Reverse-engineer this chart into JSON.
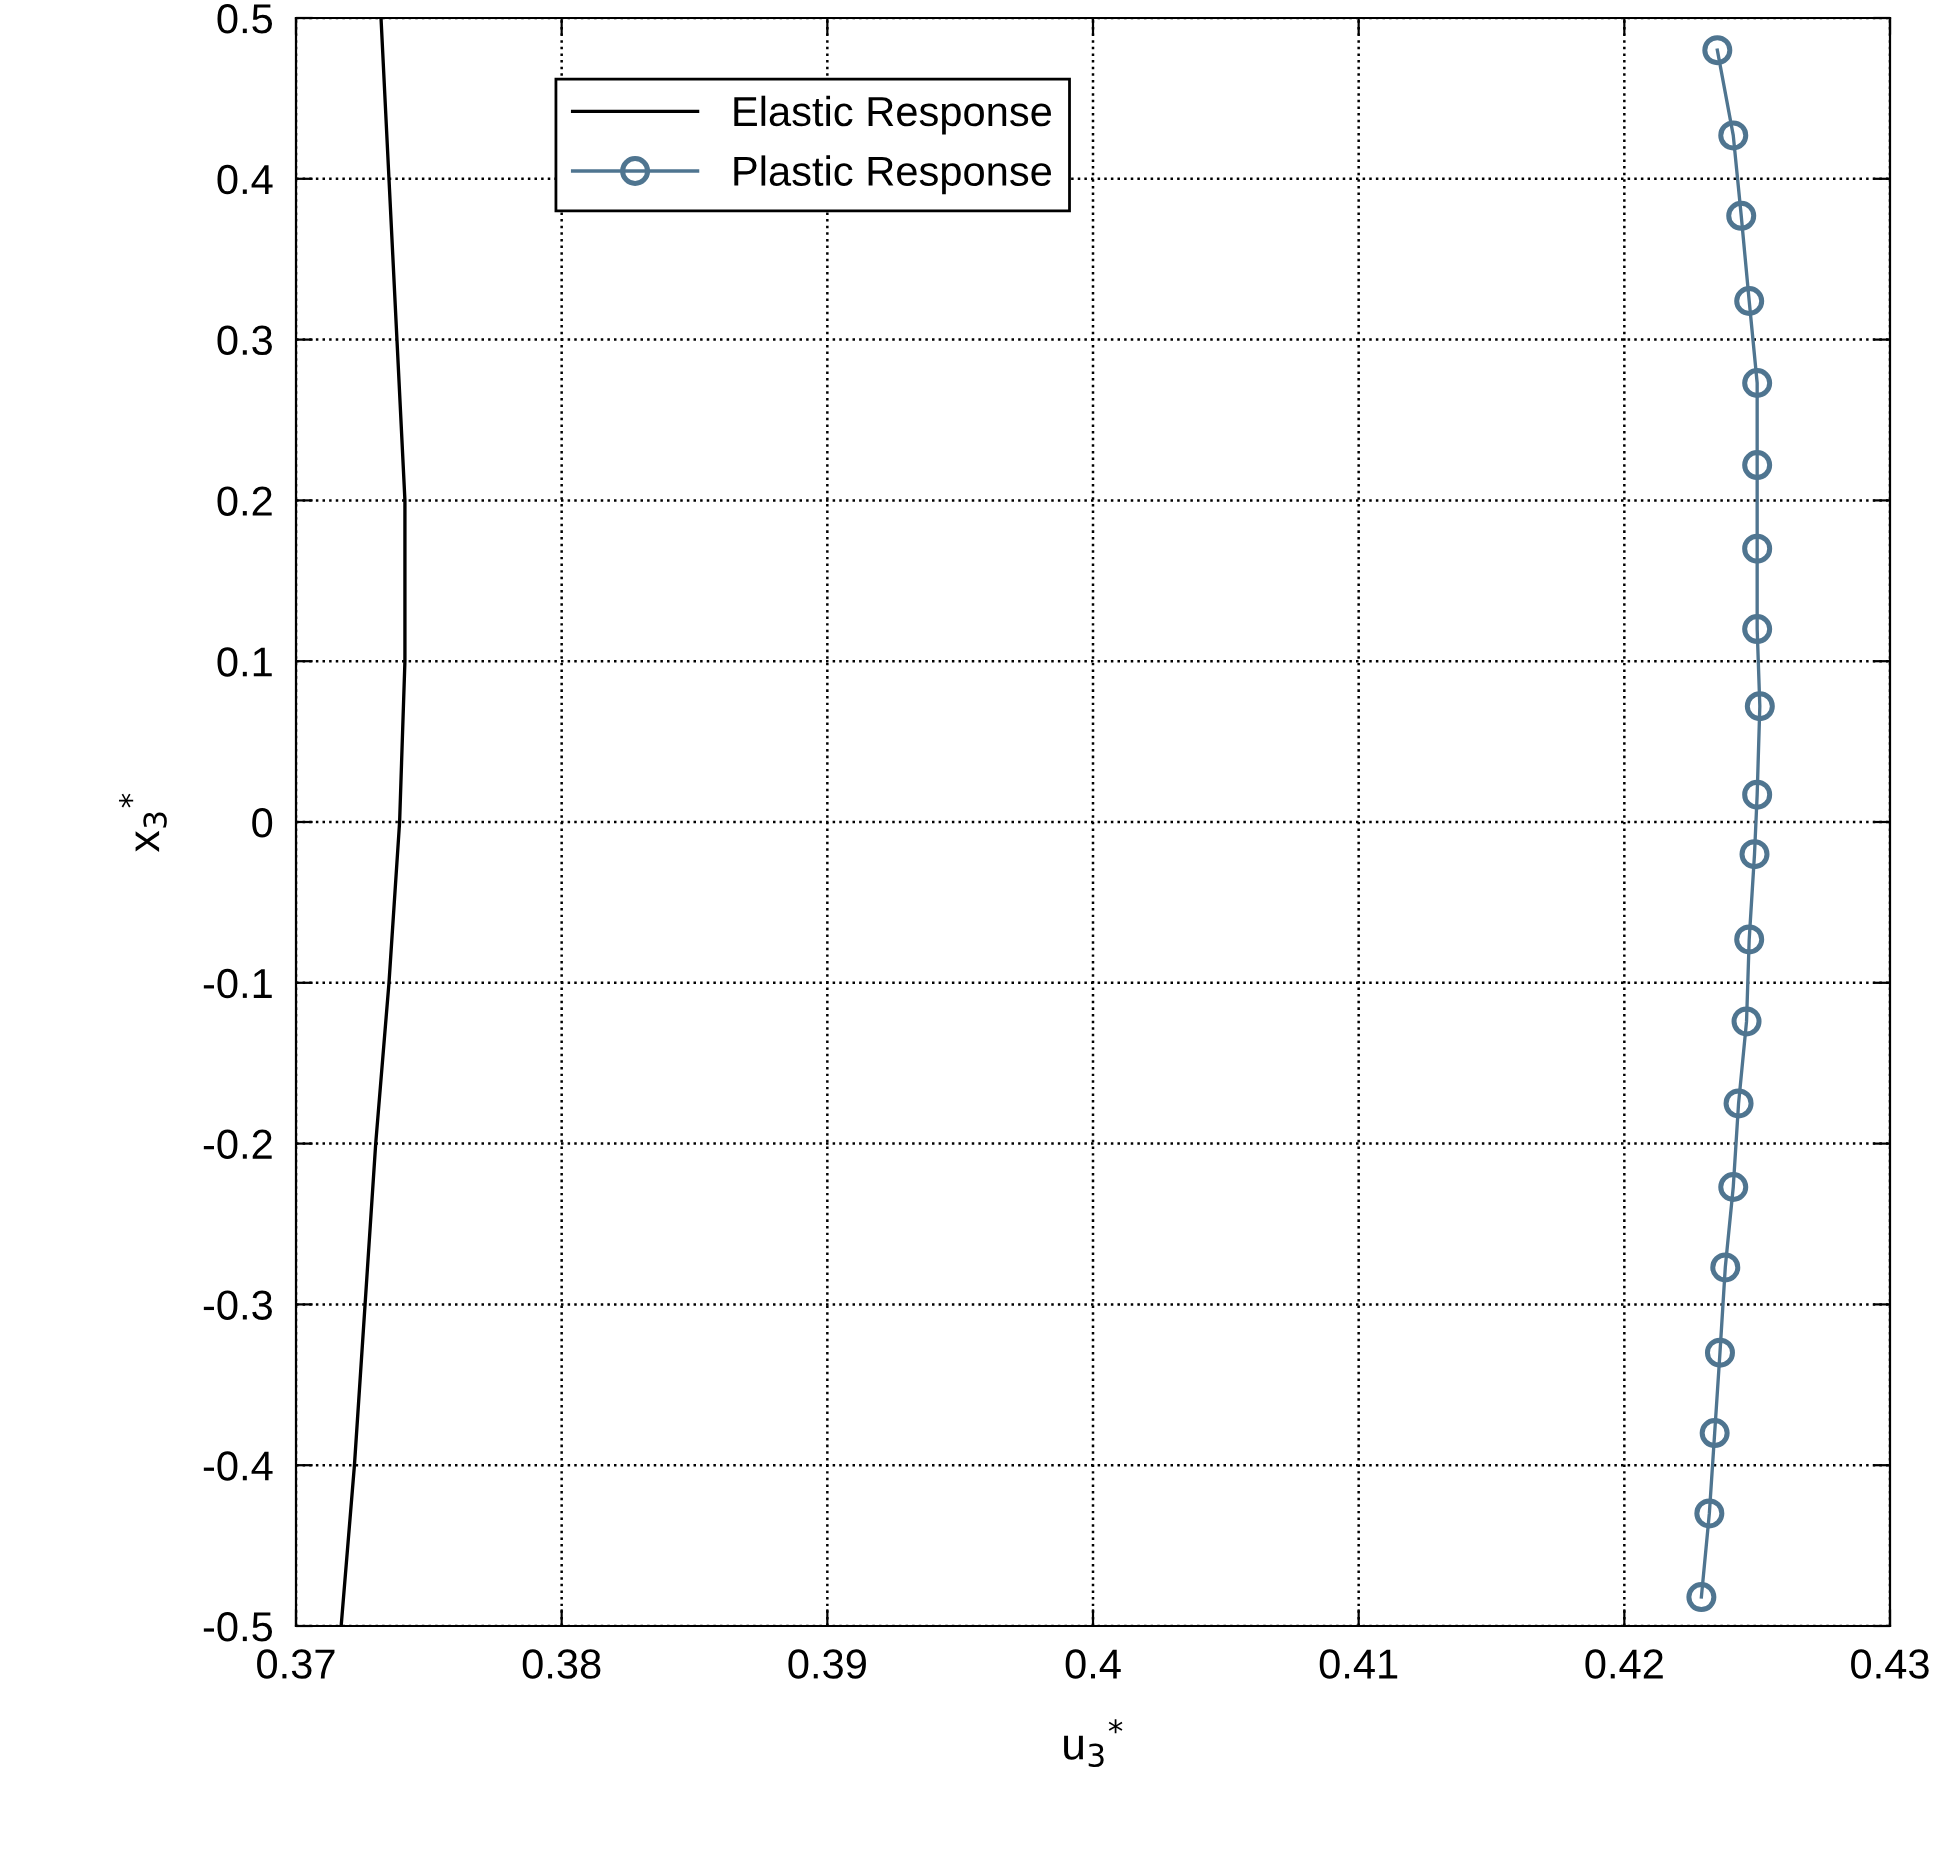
{
  "chart_data": {
    "type": "line",
    "xlabel": "u$_{3}$$^{*}$",
    "ylabel": "x$_{3}$$^{*}$",
    "xlim": [
      0.37,
      0.43
    ],
    "ylim": [
      -0.5,
      0.5
    ],
    "xticks": [
      0.37,
      0.38,
      0.39,
      0.4,
      0.41,
      0.42,
      0.43
    ],
    "yticks": [
      -0.5,
      -0.4,
      -0.3,
      -0.2,
      -0.1,
      0,
      0.1,
      0.2,
      0.3,
      0.4,
      0.5
    ],
    "grid": true,
    "legend": "top left",
    "line_style": "solid",
    "series": [
      {
        "name": "Elastic Response",
        "color": "#000000",
        "marker": "none",
        "x": [
          0.3732,
          0.3735,
          0.3738,
          0.3741,
          0.3741,
          0.3739,
          0.3735,
          0.373,
          0.3726,
          0.3722,
          0.3717
        ],
        "values": [
          0.5,
          0.4,
          0.3,
          0.2,
          0.1,
          0,
          -0.1,
          -0.2,
          -0.3,
          -0.4,
          -0.5
        ]
      },
      {
        "name": "Plastic Response",
        "color": "#4f7590",
        "marker": "circle",
        "x": [
          0.4235,
          0.4241,
          0.4244,
          0.4247,
          0.425,
          0.425,
          0.425,
          0.425,
          0.4251,
          0.425,
          0.4249,
          0.4247,
          0.4246,
          0.4243,
          0.4241,
          0.4238,
          0.4236,
          0.4234,
          0.4232,
          0.4229
        ],
        "values": [
          0.48,
          0.427,
          0.377,
          0.324,
          0.273,
          0.222,
          0.17,
          0.12,
          0.072,
          0.017,
          -0.02,
          -0.073,
          -0.124,
          -0.175,
          -0.227,
          -0.277,
          -0.33,
          -0.38,
          -0.43,
          -0.482
        ]
      }
    ]
  }
}
